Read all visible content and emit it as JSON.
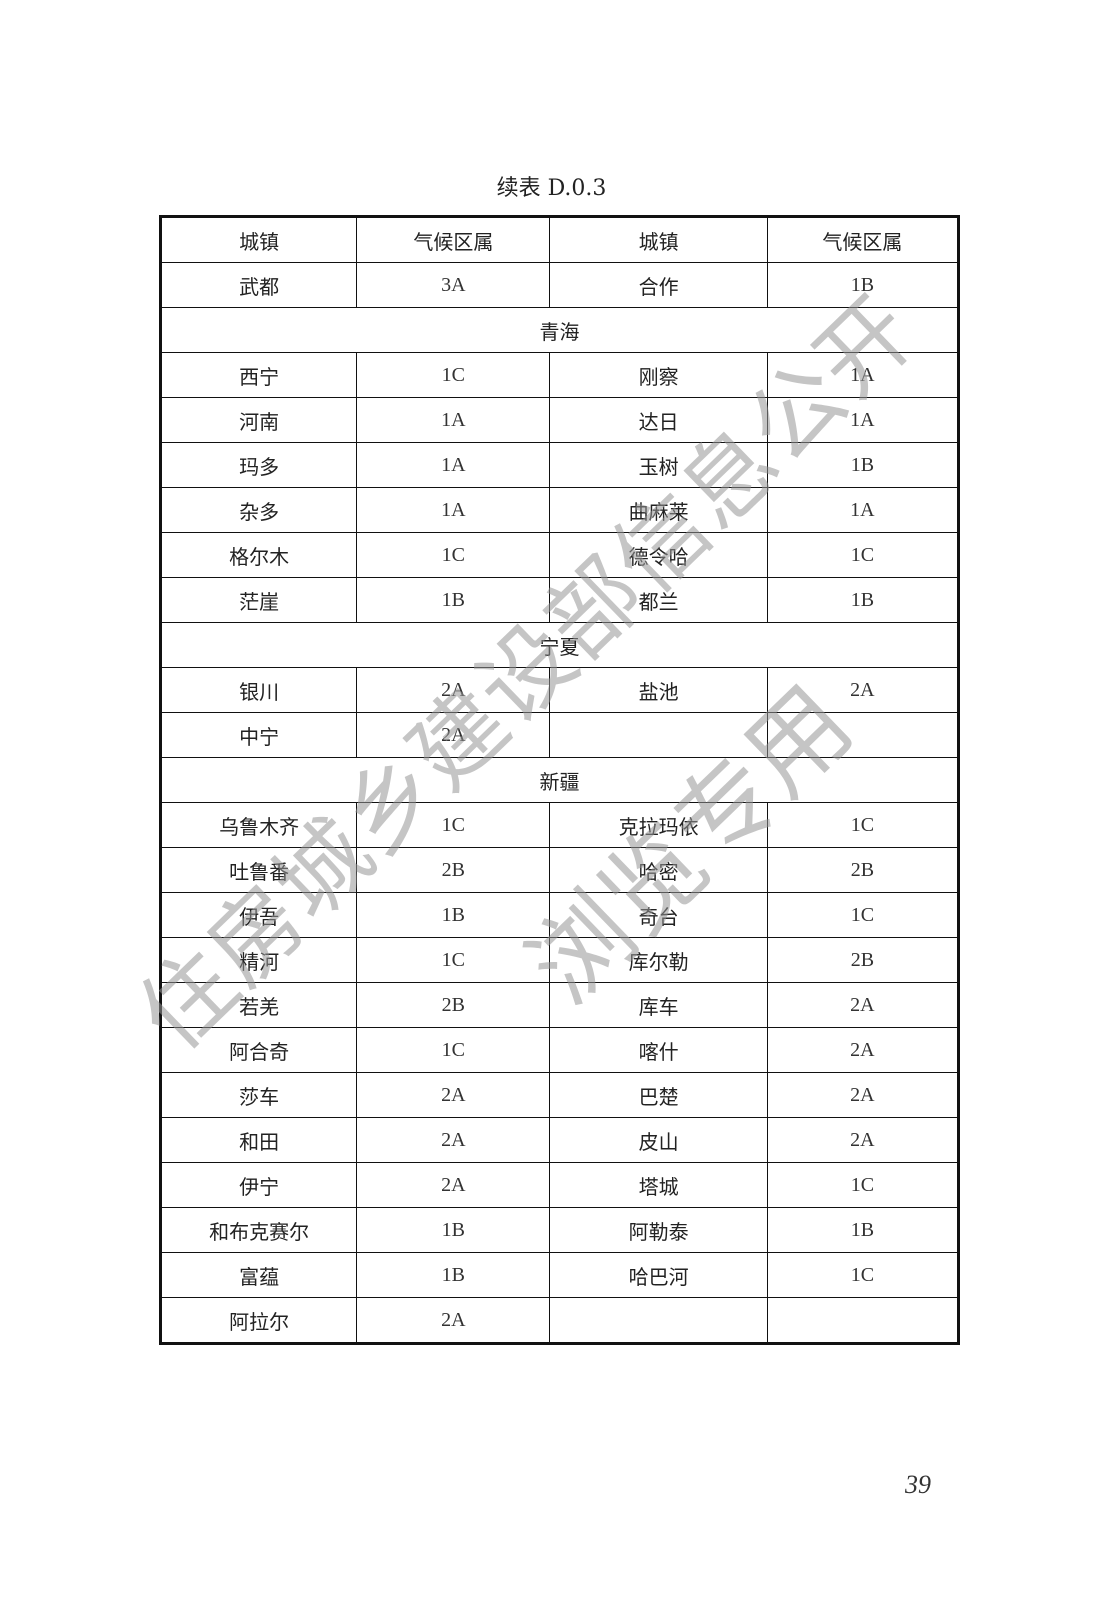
{
  "caption": "续表 D.0.3",
  "header": [
    "城镇",
    "气候区属",
    "城镇",
    "气候区属"
  ],
  "rows": [
    {
      "type": "row",
      "cells": [
        "武都",
        "3A",
        "合作",
        "1B"
      ]
    },
    {
      "type": "section",
      "title": "青海"
    },
    {
      "type": "row",
      "cells": [
        "西宁",
        "1C",
        "刚察",
        "1A"
      ]
    },
    {
      "type": "row",
      "cells": [
        "河南",
        "1A",
        "达日",
        "1A"
      ]
    },
    {
      "type": "row",
      "cells": [
        "玛多",
        "1A",
        "玉树",
        "1B"
      ]
    },
    {
      "type": "row",
      "cells": [
        "杂多",
        "1A",
        "曲麻莱",
        "1A"
      ]
    },
    {
      "type": "row",
      "cells": [
        "格尔木",
        "1C",
        "德令哈",
        "1C"
      ]
    },
    {
      "type": "row",
      "cells": [
        "茫崖",
        "1B",
        "都兰",
        "1B"
      ]
    },
    {
      "type": "section",
      "title": "宁夏"
    },
    {
      "type": "row",
      "cells": [
        "银川",
        "2A",
        "盐池",
        "2A"
      ]
    },
    {
      "type": "row",
      "cells": [
        "中宁",
        "2A",
        "",
        ""
      ]
    },
    {
      "type": "section",
      "title": "新疆"
    },
    {
      "type": "row",
      "cells": [
        "乌鲁木齐",
        "1C",
        "克拉玛依",
        "1C"
      ]
    },
    {
      "type": "row",
      "cells": [
        "吐鲁番",
        "2B",
        "哈密",
        "2B"
      ]
    },
    {
      "type": "row",
      "cells": [
        "伊吾",
        "1B",
        "奇台",
        "1C"
      ]
    },
    {
      "type": "row",
      "cells": [
        "精河",
        "1C",
        "库尔勒",
        "2B"
      ]
    },
    {
      "type": "row",
      "cells": [
        "若羌",
        "2B",
        "库车",
        "2A"
      ]
    },
    {
      "type": "row",
      "cells": [
        "阿合奇",
        "1C",
        "喀什",
        "2A"
      ]
    },
    {
      "type": "row",
      "cells": [
        "莎车",
        "2A",
        "巴楚",
        "2A"
      ]
    },
    {
      "type": "row",
      "cells": [
        "和田",
        "2A",
        "皮山",
        "2A"
      ]
    },
    {
      "type": "row",
      "cells": [
        "伊宁",
        "2A",
        "塔城",
        "1C"
      ]
    },
    {
      "type": "row",
      "cells": [
        "和布克赛尔",
        "1B",
        "阿勒泰",
        "1B"
      ]
    },
    {
      "type": "row",
      "cells": [
        "富蕴",
        "1B",
        "哈巴河",
        "1C"
      ]
    },
    {
      "type": "row",
      "cells": [
        "阿拉尔",
        "2A",
        "",
        ""
      ]
    }
  ],
  "page_number": "39",
  "watermark": {
    "line1": "住房城乡建设部信息公开",
    "line2": "浏览专用"
  }
}
